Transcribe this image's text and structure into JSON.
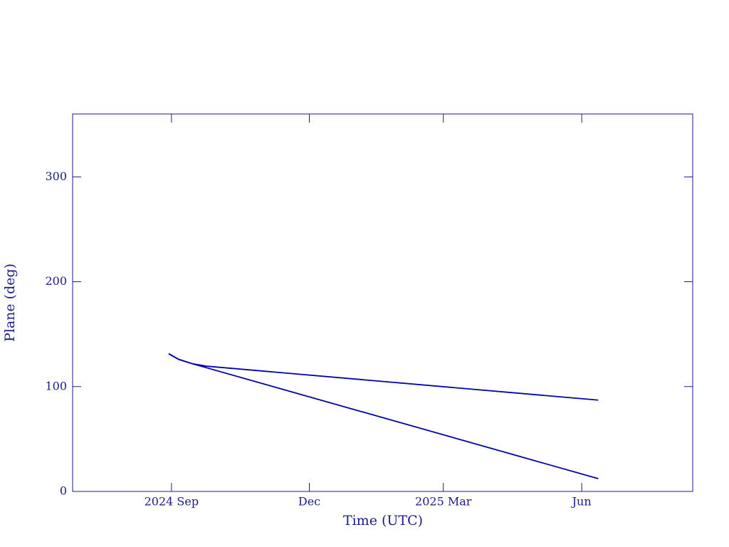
{
  "chart_data": {
    "type": "line",
    "x_label": "Time (UTC)",
    "y_label": "Plane (deg)",
    "series": [
      {
        "color": "#0000b0",
        "x": [
          2024.662,
          2024.68,
          2024.705,
          2024.73,
          2025.444
        ],
        "values": [
          131.3,
          126,
          121.8,
          119.5,
          87.1
        ]
      },
      {
        "color": "#0000b0",
        "x": [
          2024.662,
          2024.68,
          2024.705,
          2025.444
        ],
        "values": [
          131.3,
          126,
          121.8,
          12.2
        ]
      }
    ],
    "xlim": [
      2024.487,
      2025.616
    ],
    "xticks": [
      {
        "value": 2024.667,
        "label": "2024 Sep"
      },
      {
        "value": 2024.918,
        "label": "Dec"
      },
      {
        "value": 2025.162,
        "label": "2025 Mar"
      },
      {
        "value": 2025.414,
        "label": "Jun"
      }
    ],
    "ylim": [
      0,
      360
    ],
    "yticks": [
      0,
      100,
      200,
      300
    ],
    "axis_color": "#1a1a8c"
  }
}
